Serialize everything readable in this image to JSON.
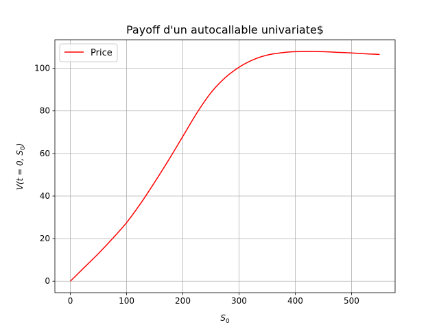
{
  "chart_data": {
    "type": "line",
    "title": "Payoff d'un autocallable univariate$",
    "xlabel_main": "S",
    "xlabel_sub": "0",
    "ylabel_prefix": "V(t = 0, S",
    "ylabel_sub": "0",
    "ylabel_suffix": ")",
    "xlim": [
      -27.5,
      577.5
    ],
    "ylim": [
      -5.4,
      113.4
    ],
    "xticks": [
      0,
      100,
      200,
      300,
      400,
      500
    ],
    "yticks": [
      0,
      20,
      40,
      60,
      80,
      100
    ],
    "grid": true,
    "legend_position": "upper-left",
    "series": [
      {
        "name": "Price",
        "color": "#ff0000",
        "x": [
          0,
          25,
          50,
          75,
          100,
          125,
          150,
          175,
          200,
          225,
          250,
          275,
          300,
          325,
          350,
          375,
          400,
          425,
          450,
          475,
          500,
          525,
          550
        ],
        "y": [
          0,
          6.5,
          13,
          20,
          27.5,
          36.5,
          46.5,
          57,
          68,
          79,
          88.5,
          95.5,
          100.5,
          104,
          106.2,
          107.3,
          107.8,
          107.9,
          107.8,
          107.5,
          107.2,
          106.8,
          106.5
        ]
      }
    ]
  }
}
